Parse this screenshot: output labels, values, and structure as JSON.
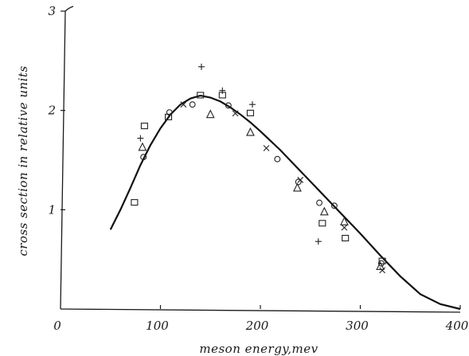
{
  "chart_data": {
    "type": "scatter",
    "title": "",
    "xlabel": "meson energy,mev",
    "ylabel": "cross section in relative units",
    "xlim": [
      0,
      400
    ],
    "ylim": [
      0,
      3
    ],
    "x_ticks": [
      0,
      100,
      200,
      300,
      400
    ],
    "y_ticks": [
      1,
      2,
      3
    ],
    "grid": false,
    "legend": "none",
    "curve": {
      "x": [
        50,
        60,
        70,
        80,
        90,
        100,
        110,
        120,
        130,
        140,
        150,
        160,
        170,
        180,
        190,
        200,
        220,
        240,
        260,
        280,
        300,
        320,
        340,
        360,
        380,
        400
      ],
      "y": [
        0.8,
        1.0,
        1.22,
        1.45,
        1.65,
        1.82,
        1.96,
        2.06,
        2.12,
        2.15,
        2.13,
        2.09,
        2.03,
        1.96,
        1.88,
        1.79,
        1.6,
        1.39,
        1.18,
        0.97,
        0.76,
        0.54,
        0.33,
        0.15,
        0.05,
        0.0
      ]
    },
    "series": [
      {
        "marker": "plus",
        "x": [
          80,
          141,
          162,
          192,
          258
        ],
        "y": [
          1.72,
          2.44,
          2.2,
          2.06,
          0.68
        ]
      },
      {
        "marker": "circle",
        "x": [
          83,
          109,
          132,
          168,
          217,
          238,
          259,
          274,
          321
        ],
        "y": [
          1.53,
          1.98,
          2.06,
          2.05,
          1.51,
          1.28,
          1.07,
          1.04,
          0.46
        ]
      },
      {
        "marker": "square",
        "x": [
          74,
          84,
          108,
          140,
          162,
          190,
          262,
          285,
          322
        ],
        "y": [
          1.07,
          1.84,
          1.93,
          2.15,
          2.15,
          1.97,
          0.86,
          0.71,
          0.48
        ]
      },
      {
        "marker": "triangle",
        "x": [
          82,
          150,
          190,
          237,
          264,
          284,
          320
        ],
        "y": [
          1.63,
          1.96,
          1.78,
          1.22,
          0.98,
          0.88,
          0.43
        ]
      },
      {
        "marker": "cross",
        "x": [
          123,
          175,
          206,
          240,
          284,
          322
        ],
        "y": [
          2.06,
          1.97,
          1.62,
          1.3,
          0.82,
          0.39
        ]
      }
    ]
  }
}
